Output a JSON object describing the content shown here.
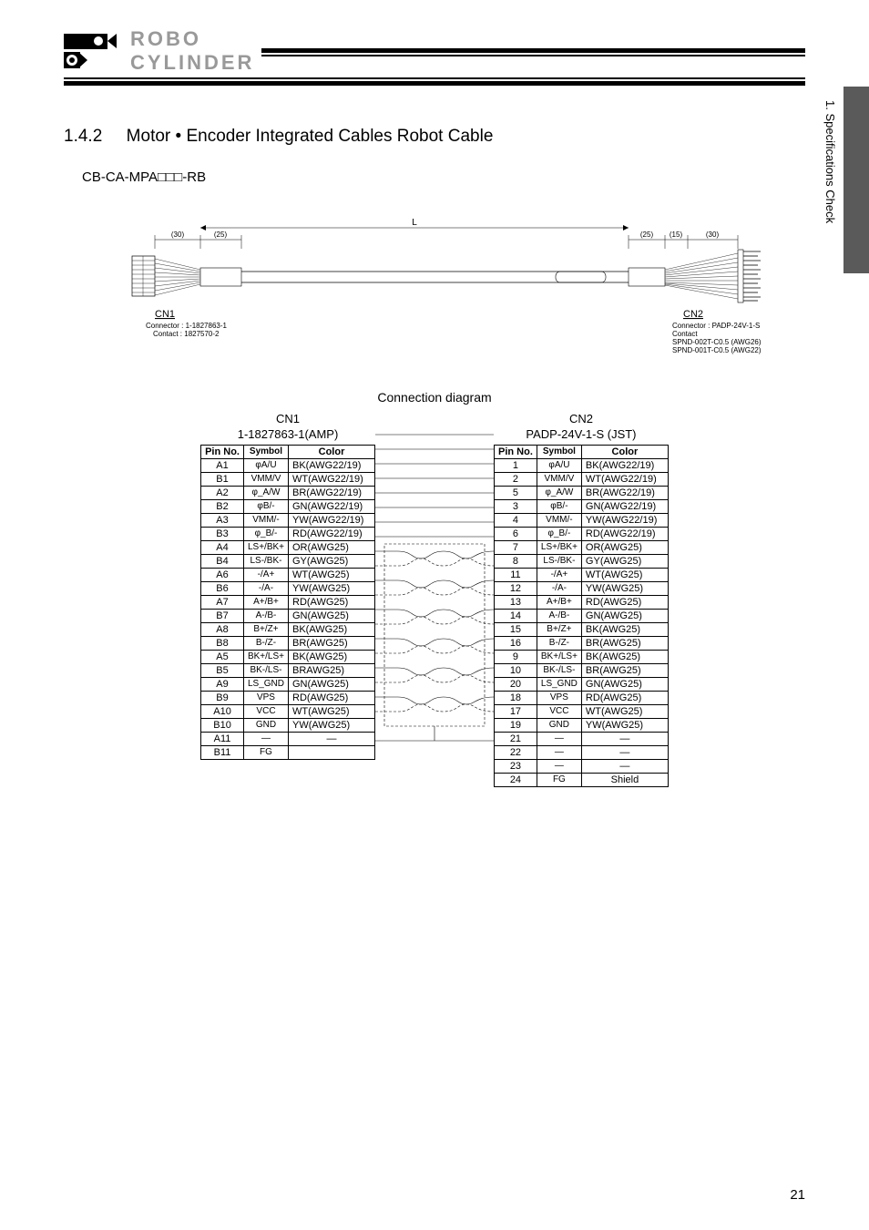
{
  "logo": {
    "line1": "ROBO",
    "line2": "CYLINDER"
  },
  "section": {
    "num": "1.4.2",
    "title": "Motor • Encoder Integrated Cables    Robot Cable"
  },
  "model": "CB-CA-MPA□□□-RB",
  "side_tab": "1. Specifications Check",
  "cable": {
    "dim_30": "(30)",
    "dim_25": "(25)",
    "dim_15": "(15)",
    "dim_L": "L",
    "cn1_label": "CN1",
    "cn1_conn": "Connector : 1-1827863-1",
    "cn1_contact": "Contact : 1827570-2",
    "cn2_label": "CN2",
    "cn2_conn": "Connector : PADP-24V-1-S",
    "cn2_contact": "Contact",
    "cn2_sp1": "SPND-002T-C0.5 (AWG26)",
    "cn2_sp2": "SPND-001T-C0.5 (AWG22)"
  },
  "conn_diag_title": "Connection diagram",
  "cn1": {
    "title1": "CN1",
    "title2": "1-1827863-1(AMP)",
    "headers": [
      "Pin No.",
      "Symbol",
      "Color"
    ],
    "rows": [
      [
        "A1",
        "φA/U",
        "BK(AWG22/19)"
      ],
      [
        "B1",
        "VMM/V",
        "WT(AWG22/19)"
      ],
      [
        "A2",
        "φ_A/W",
        "BR(AWG22/19)"
      ],
      [
        "B2",
        "φB/-",
        "GN(AWG22/19)"
      ],
      [
        "A3",
        "VMM/-",
        "YW(AWG22/19)"
      ],
      [
        "B3",
        "φ_B/-",
        "RD(AWG22/19)"
      ],
      [
        "A4",
        "LS+/BK+",
        "OR(AWG25)"
      ],
      [
        "B4",
        "LS-/BK-",
        "GY(AWG25)"
      ],
      [
        "A6",
        "-/A+",
        "WT(AWG25)"
      ],
      [
        "B6",
        "-/A-",
        "YW(AWG25)"
      ],
      [
        "A7",
        "A+/B+",
        "RD(AWG25)"
      ],
      [
        "B7",
        "A-/B-",
        "GN(AWG25)"
      ],
      [
        "A8",
        "B+/Z+",
        "BK(AWG25)"
      ],
      [
        "B8",
        "B-/Z-",
        "BR(AWG25)"
      ],
      [
        "A5",
        "BK+/LS+",
        "BK(AWG25)"
      ],
      [
        "B5",
        "BK-/LS-",
        "BRAWG25)"
      ],
      [
        "A9",
        "LS_GND",
        "GN(AWG25)"
      ],
      [
        "B9",
        "VPS",
        "RD(AWG25)"
      ],
      [
        "A10",
        "VCC",
        "WT(AWG25)"
      ],
      [
        "B10",
        "GND",
        "YW(AWG25)"
      ],
      [
        "A11",
        "—",
        "—"
      ],
      [
        "B11",
        "FG",
        ""
      ]
    ]
  },
  "cn2": {
    "title1": "CN2",
    "title2": "PADP-24V-1-S (JST)",
    "headers": [
      "Pin No.",
      "Symbol",
      "Color"
    ],
    "rows": [
      [
        "1",
        "φA/U",
        "BK(AWG22/19)"
      ],
      [
        "2",
        "VMM/V",
        "WT(AWG22/19)"
      ],
      [
        "5",
        "φ_A/W",
        "BR(AWG22/19)"
      ],
      [
        "3",
        "φB/-",
        "GN(AWG22/19)"
      ],
      [
        "4",
        "VMM/-",
        "YW(AWG22/19)"
      ],
      [
        "6",
        "φ_B/-",
        "RD(AWG22/19)"
      ],
      [
        "7",
        "LS+/BK+",
        "OR(AWG25)"
      ],
      [
        "8",
        "LS-/BK-",
        "GY(AWG25)"
      ],
      [
        "11",
        "-/A+",
        "WT(AWG25)"
      ],
      [
        "12",
        "-/A-",
        "YW(AWG25)"
      ],
      [
        "13",
        "A+/B+",
        "RD(AWG25)"
      ],
      [
        "14",
        "A-/B-",
        "GN(AWG25)"
      ],
      [
        "15",
        "B+/Z+",
        "BK(AWG25)"
      ],
      [
        "16",
        "B-/Z-",
        "BR(AWG25)"
      ],
      [
        "9",
        "BK+/LS+",
        "BK(AWG25)"
      ],
      [
        "10",
        "BK-/LS-",
        "BR(AWG25)"
      ],
      [
        "20",
        "LS_GND",
        "GN(AWG25)"
      ],
      [
        "18",
        "VPS",
        "RD(AWG25)"
      ],
      [
        "17",
        "VCC",
        "WT(AWG25)"
      ],
      [
        "19",
        "GND",
        "YW(AWG25)"
      ],
      [
        "21",
        "—",
        "—"
      ],
      [
        "22",
        "—",
        "—"
      ],
      [
        "23",
        "—",
        "—"
      ],
      [
        "24",
        "FG",
        "Shield"
      ]
    ]
  },
  "page_num": "21"
}
